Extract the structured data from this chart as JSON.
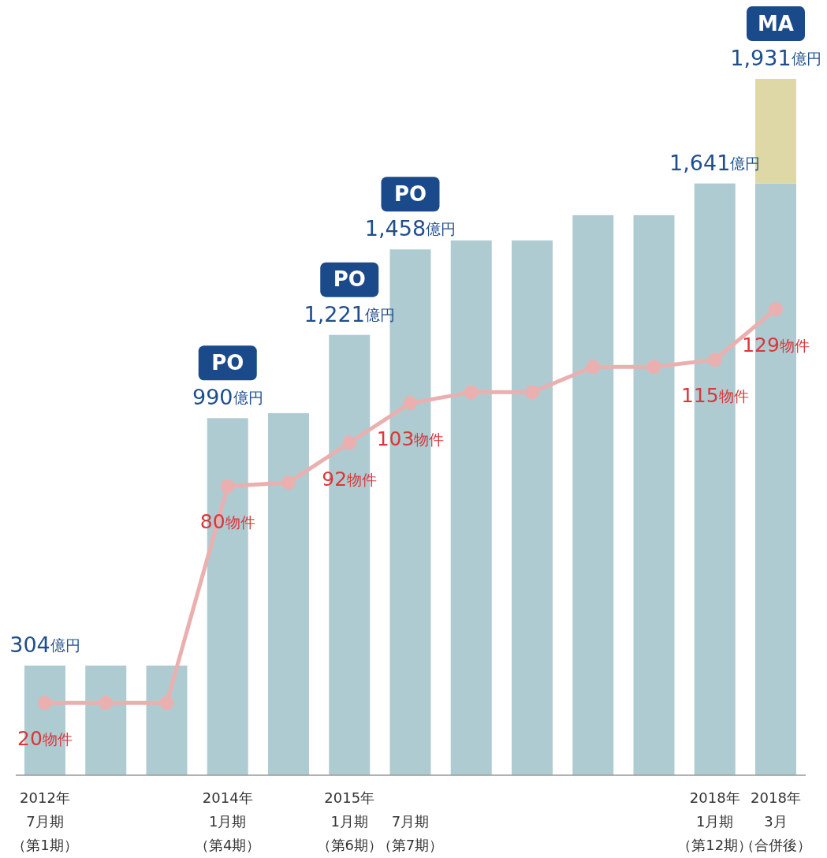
{
  "chart_data": {
    "type": "bar",
    "stacked": true,
    "categories": [
      "2012年7月期（第1期）",
      null,
      null,
      "2014年1月期（第4期）",
      null,
      "2015年1月期（第6期）",
      "7月期（第7期）",
      null,
      null,
      null,
      null,
      "2018年1月期（第12期）",
      "2018年3月（合併後）"
    ],
    "series": [
      {
        "color": "#aecbd1",
        "values": [
          304,
          304,
          304,
          990,
          1004,
          1221,
          1458,
          1483,
          1483,
          1553,
          1553,
          1641,
          1641
        ],
        "value_labels": [
          "304億円",
          null,
          null,
          "990億円",
          null,
          "1,221億円",
          "1,458億円",
          null,
          null,
          null,
          null,
          "1,641億円",
          null
        ]
      },
      {
        "color": "#ddd8a6",
        "values": [
          null,
          null,
          null,
          null,
          null,
          null,
          null,
          null,
          null,
          null,
          null,
          null,
          290
        ]
      },
      {
        "type": "line",
        "axis": "y2",
        "color": "#eab0b0",
        "marker": "circle",
        "values": [
          20,
          20,
          20,
          80,
          81,
          92,
          103,
          106,
          106,
          113,
          113,
          115,
          129
        ],
        "value_labels": [
          "20物件",
          null,
          null,
          "80物件",
          null,
          "92物件",
          "103物件",
          null,
          null,
          null,
          null,
          "115物件",
          "129物件"
        ]
      }
    ],
    "totals": [
      null,
      null,
      null,
      null,
      null,
      null,
      null,
      null,
      null,
      null,
      null,
      null,
      "1,931億円"
    ],
    "annotations": [
      {
        "text": "PO",
        "x": "2014年1月期（第4期）",
        "y": 990
      },
      {
        "text": "PO",
        "x": "2015年1月期（第6期）",
        "y": 1221
      },
      {
        "text": "PO",
        "x": "7月期（第7期）",
        "y": 1458
      },
      {
        "text": "MA",
        "x": "2018年3月（合併後）",
        "y": 1931
      }
    ]
  }
}
